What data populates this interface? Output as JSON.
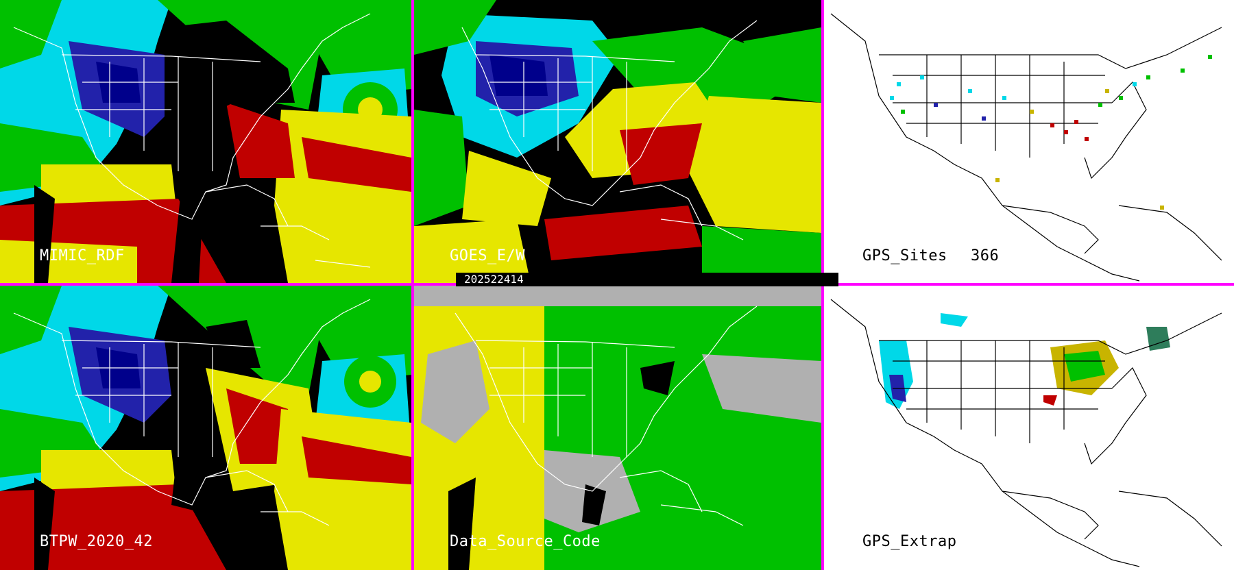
{
  "panels": [
    {
      "label": "MIMIC_RDF"
    },
    {
      "label": "GOES_E/W"
    },
    {
      "label": "GPS_Sites",
      "count": "366"
    },
    {
      "label": "BTPW_2020_42"
    },
    {
      "label": "Data_Source_Code"
    },
    {
      "label": "GPS_Extrap"
    }
  ],
  "timestamp": "202522414",
  "colors": {
    "divider": "#ff00ff",
    "very_dry": "#00008b",
    "dry": "#2222aa",
    "cyan": "#00d8e8",
    "green": "#00c000",
    "yellow": "#e6e600",
    "red": "#c00000",
    "magenta": "#ff00ff",
    "missing": "#000000",
    "source_gray": "#b0b0b0"
  },
  "icons": {
    "coastline": "map-outline",
    "site_marker": "square-marker"
  }
}
